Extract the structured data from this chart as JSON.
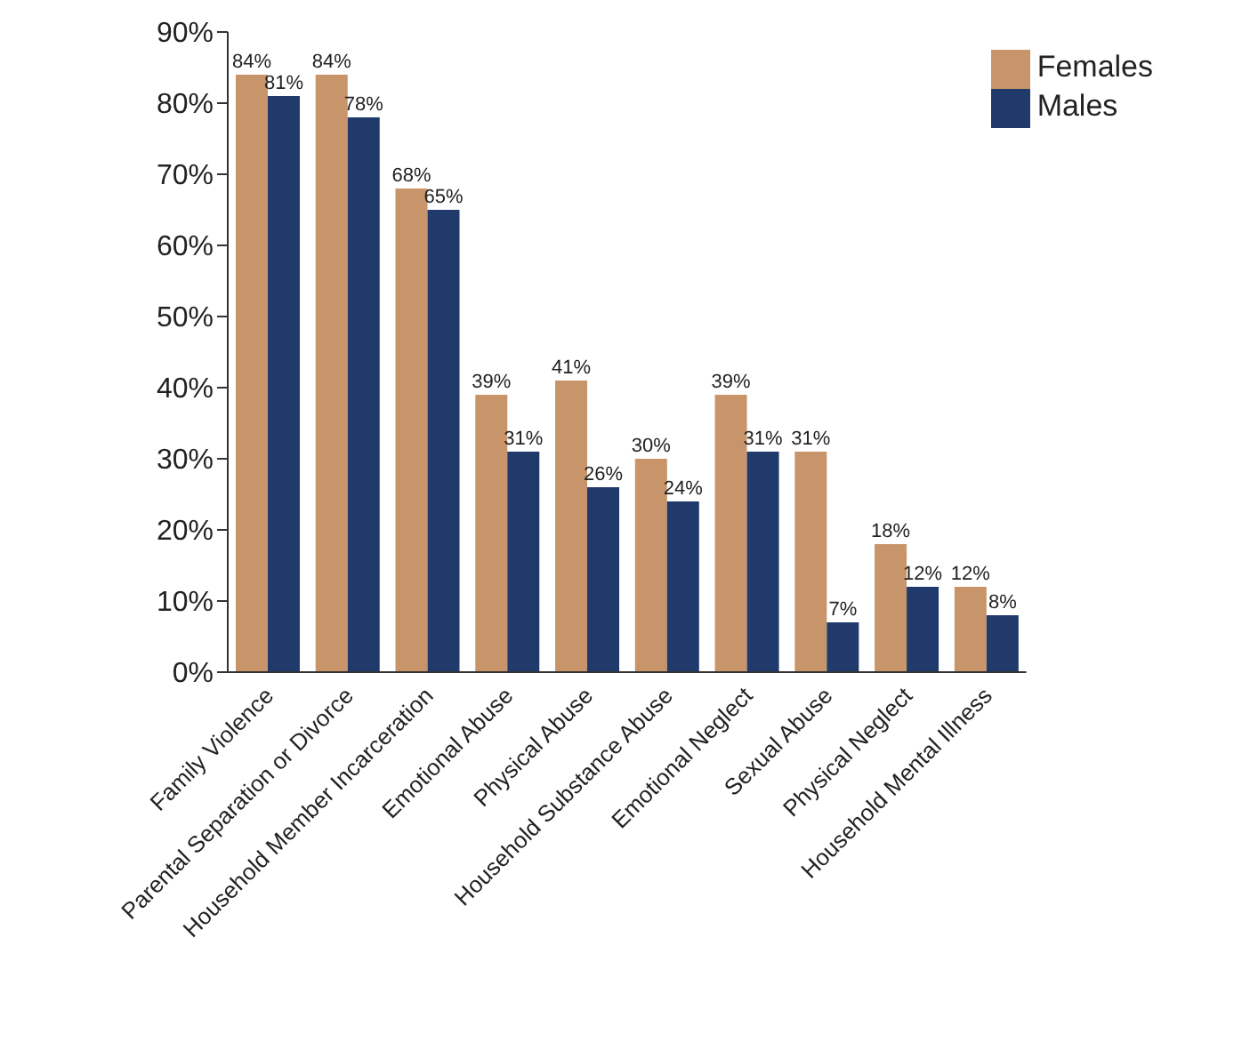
{
  "chart_data": {
    "type": "bar",
    "categories": [
      "Family Violence",
      "Parental Separation or Divorce",
      "Household Member Incarceration",
      "Emotional Abuse",
      "Physical Abuse",
      "Household Substance Abuse",
      "Emotional Neglect",
      "Sexual Abuse",
      "Physical Neglect",
      "Household Mental Illness"
    ],
    "series": [
      {
        "name": "Females",
        "color": "#c8956a",
        "values": [
          84,
          84,
          68,
          39,
          41,
          30,
          39,
          31,
          18,
          12
        ],
        "value_labels": [
          "84%",
          "84%",
          "68%",
          "39%",
          "41%",
          "30%",
          "39%",
          "31%",
          "18%",
          "12%"
        ]
      },
      {
        "name": "Males",
        "color": "#1f3a6b",
        "values": [
          81,
          78,
          65,
          31,
          26,
          24,
          31,
          7,
          12,
          8
        ],
        "value_labels": [
          "81%",
          "78%",
          "65%",
          "31%",
          "26%",
          "24%",
          "31%",
          "7%",
          "12%",
          "8%"
        ]
      }
    ],
    "ylim": [
      0,
      90
    ],
    "yticks": [
      {
        "value": 0,
        "label": "0%"
      },
      {
        "value": 10,
        "label": "10%"
      },
      {
        "value": 20,
        "label": "20%"
      },
      {
        "value": 30,
        "label": "30%"
      },
      {
        "value": 40,
        "label": "40%"
      },
      {
        "value": 50,
        "label": "50%"
      },
      {
        "value": 60,
        "label": "60%"
      },
      {
        "value": 70,
        "label": "70%"
      },
      {
        "value": 80,
        "label": "80%"
      },
      {
        "value": 90,
        "label": "90%"
      }
    ],
    "grid": false,
    "legend": "top right"
  }
}
